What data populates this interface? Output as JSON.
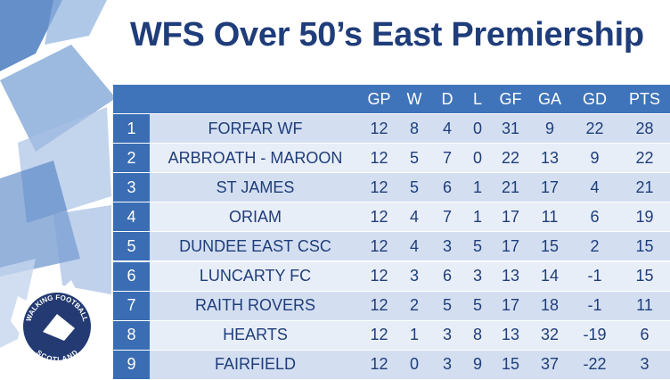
{
  "title": "WFS Over 50’s East Premiership",
  "logo": {
    "top": "WALKING FOOTBALL",
    "bottom": "SCOTLAND"
  },
  "table": {
    "headers": [
      "",
      "",
      "GP",
      "W",
      "D",
      "L",
      "GF",
      "GA",
      "GD",
      "PTS"
    ],
    "rows": [
      [
        1,
        "FORFAR WF",
        12,
        8,
        4,
        0,
        31,
        9,
        22,
        28
      ],
      [
        2,
        "ARBROATH - MAROON",
        12,
        5,
        7,
        0,
        22,
        13,
        9,
        22
      ],
      [
        3,
        "ST JAMES",
        12,
        5,
        6,
        1,
        21,
        17,
        4,
        21
      ],
      [
        4,
        "ORIAM",
        12,
        4,
        7,
        1,
        17,
        11,
        6,
        19
      ],
      [
        5,
        "DUNDEE EAST CSC",
        12,
        4,
        3,
        5,
        17,
        15,
        2,
        15
      ],
      [
        6,
        "LUNCARTY FC",
        12,
        3,
        6,
        3,
        13,
        14,
        -1,
        15
      ],
      [
        7,
        "RAITH ROVERS",
        12,
        2,
        5,
        5,
        17,
        18,
        -1,
        11
      ],
      [
        8,
        "HEARTS",
        12,
        1,
        3,
        8,
        13,
        32,
        -19,
        6
      ],
      [
        9,
        "FAIRFIELD",
        12,
        0,
        3,
        9,
        15,
        37,
        -22,
        3
      ]
    ]
  }
}
